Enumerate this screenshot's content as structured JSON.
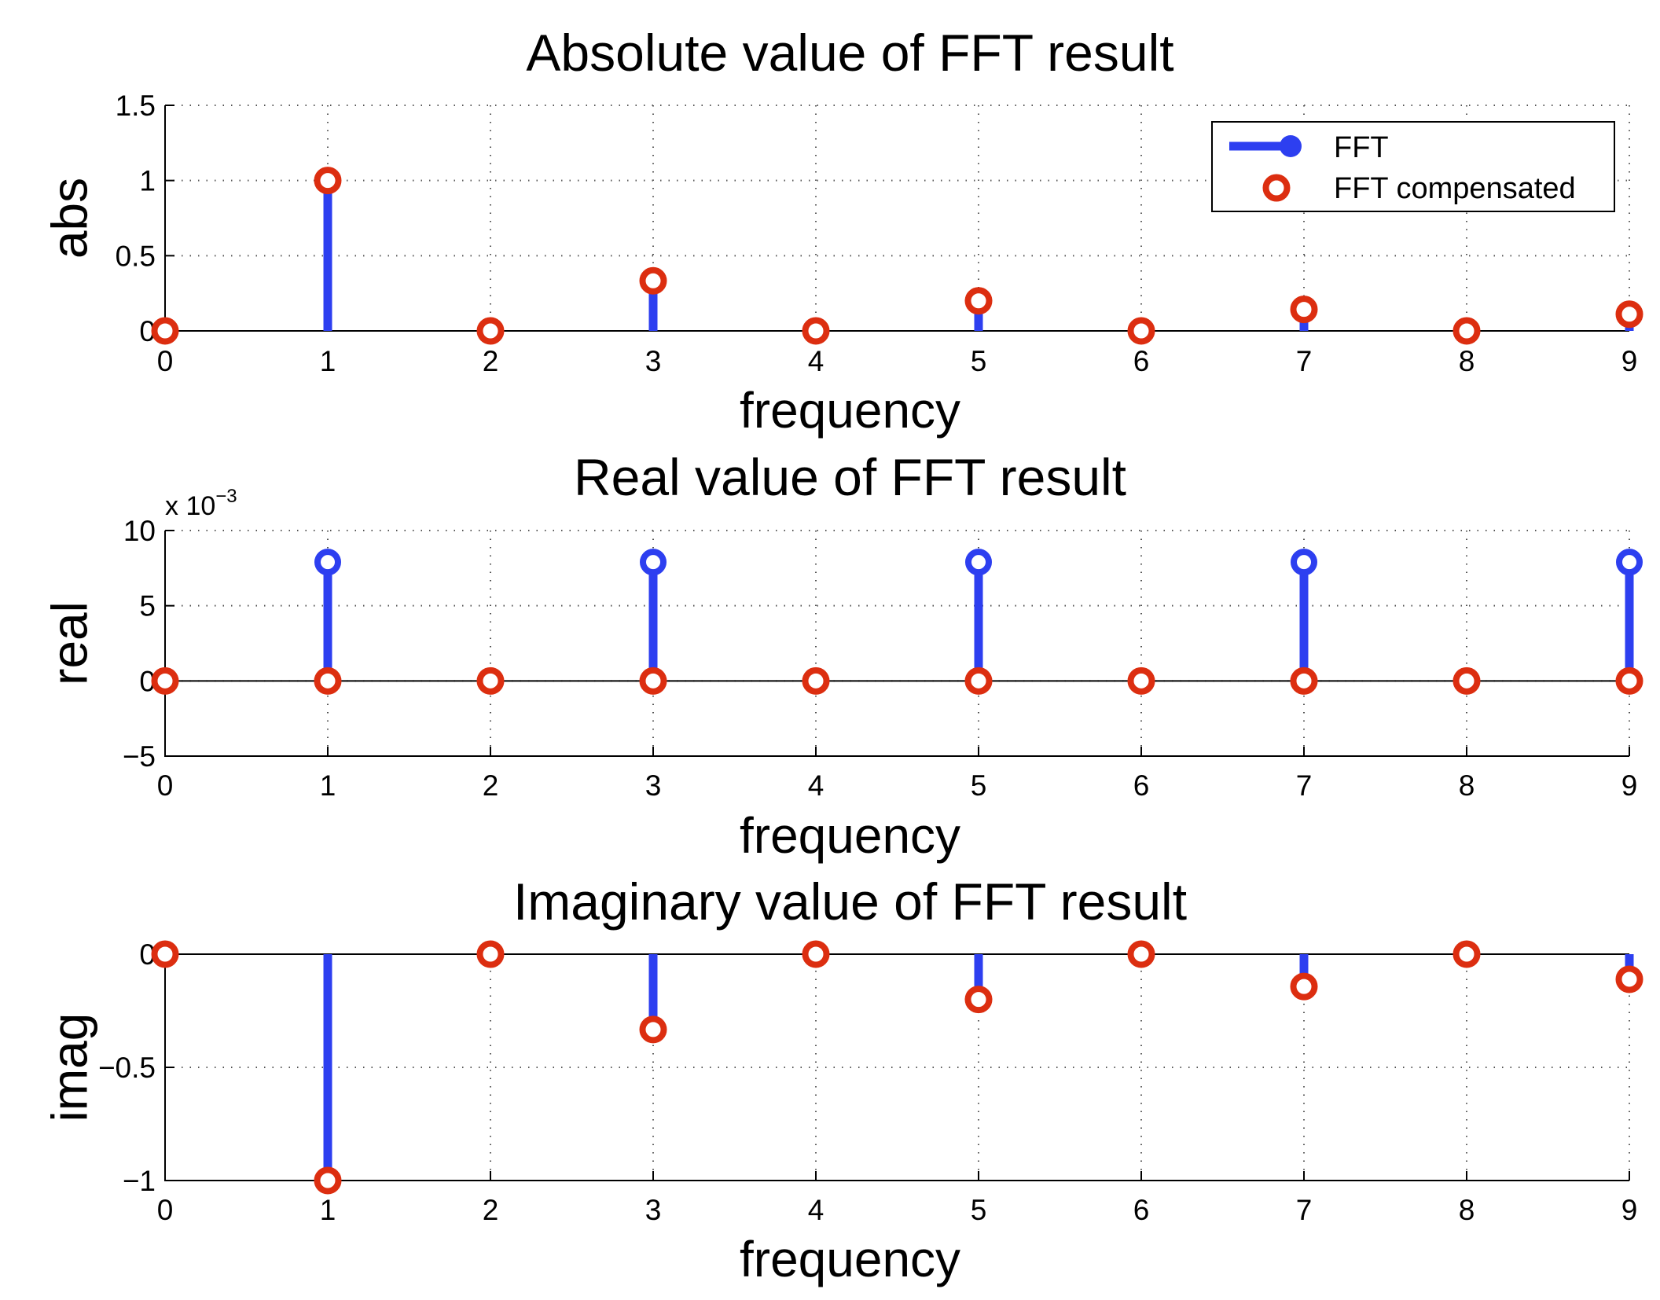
{
  "colors": {
    "fft": "#2d3ff0",
    "fft_compensated": "#dc2e10",
    "axis": "#000000",
    "grid": "#555555",
    "background": "#ffffff"
  },
  "chart_data": [
    {
      "type": "stem",
      "title": "Absolute value of FFT result",
      "xlabel": "frequency",
      "ylabel": "abs",
      "xlim": [
        0,
        9
      ],
      "ylim": [
        0,
        1.5
      ],
      "x_ticks": [
        0,
        1,
        2,
        3,
        4,
        5,
        6,
        7,
        8,
        9
      ],
      "y_ticks": [
        0,
        0.5,
        1,
        1.5
      ],
      "y_tick_labels": [
        "0",
        "0.5",
        "1",
        "1.5"
      ],
      "grid": true,
      "legend": {
        "placement": "top-right",
        "entries": [
          "FFT",
          "FFT compensated"
        ]
      },
      "x": [
        0,
        1,
        2,
        3,
        4,
        5,
        6,
        7,
        8,
        9
      ],
      "series": [
        {
          "name": "FFT",
          "style": "stem",
          "values": [
            0,
            1.0,
            0,
            0.333,
            0,
            0.2,
            0,
            0.143,
            0,
            0.111
          ]
        },
        {
          "name": "FFT compensated",
          "style": "ring",
          "values": [
            0,
            1.0,
            0,
            0.333,
            0,
            0.2,
            0,
            0.143,
            0,
            0.111
          ]
        }
      ]
    },
    {
      "type": "stem",
      "title": "Real value of FFT result",
      "xlabel": "frequency",
      "ylabel": "real",
      "multiplier": "x 10",
      "multiplier_exponent": "−3",
      "xlim": [
        0,
        9
      ],
      "ylim": [
        -5,
        10
      ],
      "x_ticks": [
        0,
        1,
        2,
        3,
        4,
        5,
        6,
        7,
        8,
        9
      ],
      "y_ticks": [
        -5,
        0,
        5,
        10
      ],
      "y_tick_labels": [
        "−5",
        "0",
        "5",
        "10"
      ],
      "grid": true,
      "x": [
        0,
        1,
        2,
        3,
        4,
        5,
        6,
        7,
        8,
        9
      ],
      "series": [
        {
          "name": "FFT",
          "style": "stem",
          "values": [
            0,
            7.9,
            0,
            7.9,
            0,
            7.9,
            0,
            7.9,
            0,
            7.9
          ]
        },
        {
          "name": "FFT compensated",
          "style": "ring",
          "values": [
            0,
            0,
            0,
            0,
            0,
            0,
            0,
            0,
            0,
            0
          ]
        }
      ]
    },
    {
      "type": "stem",
      "title": "Imaginary value of FFT result",
      "xlabel": "frequency",
      "ylabel": "imag",
      "xlim": [
        0,
        9
      ],
      "ylim": [
        -1,
        0
      ],
      "x_ticks": [
        0,
        1,
        2,
        3,
        4,
        5,
        6,
        7,
        8,
        9
      ],
      "y_ticks": [
        -1,
        -0.5,
        0
      ],
      "y_tick_labels": [
        "−1",
        "−0.5",
        "0"
      ],
      "grid": true,
      "x": [
        0,
        1,
        2,
        3,
        4,
        5,
        6,
        7,
        8,
        9
      ],
      "series": [
        {
          "name": "FFT",
          "style": "stem",
          "values": [
            0,
            -1.0,
            0,
            -0.333,
            0,
            -0.2,
            0,
            -0.143,
            0,
            -0.111
          ]
        },
        {
          "name": "FFT compensated",
          "style": "ring",
          "values": [
            0,
            -1.0,
            0,
            -0.333,
            0,
            -0.2,
            0,
            -0.143,
            0,
            -0.111
          ]
        }
      ]
    }
  ]
}
